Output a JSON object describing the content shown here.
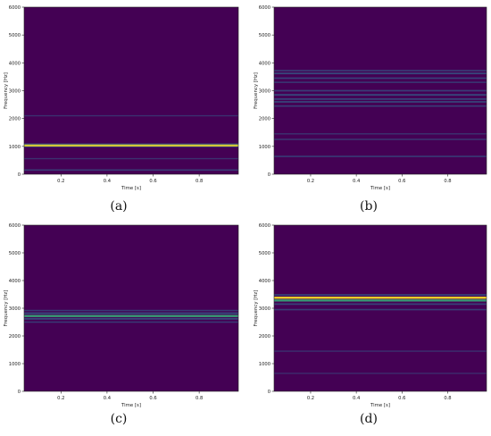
{
  "colors": {
    "background": "#440154",
    "line_mid": "#31688e",
    "line_bright": "#35b779",
    "line_peak": "#fde725"
  },
  "chart_data": [
    {
      "type": "heatmap",
      "panel": "(a)",
      "xlabel": "Time [s]",
      "ylabel": "Frequency [Hz]",
      "xlim": [
        0.04,
        0.97
      ],
      "ylim": [
        0,
        6000
      ],
      "xticks": [
        0.2,
        0.4,
        0.6,
        0.8
      ],
      "yticks": [
        0,
        1000,
        2000,
        3000,
        4000,
        5000,
        6000
      ],
      "bands": [
        {
          "freq": 150,
          "intensity": 0.35
        },
        {
          "freq": 560,
          "intensity": 0.2
        },
        {
          "freq": 1000,
          "intensity": 0.55
        },
        {
          "freq": 1040,
          "intensity": 0.95
        },
        {
          "freq": 1080,
          "intensity": 0.45
        },
        {
          "freq": 2100,
          "intensity": 0.2
        }
      ]
    },
    {
      "type": "heatmap",
      "panel": "(b)",
      "xlabel": "Time [s]",
      "ylabel": "Frequency [Hz]",
      "xlim": [
        0.04,
        0.97
      ],
      "ylim": [
        0,
        6000
      ],
      "xticks": [
        0.2,
        0.4,
        0.6,
        0.8
      ],
      "yticks": [
        0,
        1000,
        2000,
        3000,
        4000,
        5000,
        6000
      ],
      "bands": [
        {
          "freq": 640,
          "intensity": 0.35
        },
        {
          "freq": 1250,
          "intensity": 0.3
        },
        {
          "freq": 1450,
          "intensity": 0.25
        },
        {
          "freq": 2450,
          "intensity": 0.4
        },
        {
          "freq": 2600,
          "intensity": 0.5
        },
        {
          "freq": 2700,
          "intensity": 0.45
        },
        {
          "freq": 2850,
          "intensity": 0.55
        },
        {
          "freq": 3000,
          "intensity": 0.4
        },
        {
          "freq": 3300,
          "intensity": 0.35
        },
        {
          "freq": 3450,
          "intensity": 0.45
        },
        {
          "freq": 3620,
          "intensity": 0.55
        },
        {
          "freq": 3720,
          "intensity": 0.4
        }
      ]
    },
    {
      "type": "heatmap",
      "panel": "(c)",
      "xlabel": "Time [s]",
      "ylabel": "Frequency [Hz]",
      "xlim": [
        0.04,
        0.97
      ],
      "ylim": [
        0,
        6000
      ],
      "xticks": [
        0.2,
        0.4,
        0.6,
        0.8
      ],
      "yticks": [
        0,
        1000,
        2000,
        3000,
        4000,
        5000,
        6000
      ],
      "bands": [
        {
          "freq": 2500,
          "intensity": 0.35
        },
        {
          "freq": 2620,
          "intensity": 0.55
        },
        {
          "freq": 2720,
          "intensity": 0.85
        },
        {
          "freq": 2820,
          "intensity": 0.6
        },
        {
          "freq": 2920,
          "intensity": 0.35
        }
      ]
    },
    {
      "type": "heatmap",
      "panel": "(d)",
      "xlabel": "Time [s]",
      "ylabel": "Frequency [Hz]",
      "xlim": [
        0.04,
        0.97
      ],
      "ylim": [
        0,
        6000
      ],
      "xticks": [
        0.2,
        0.4,
        0.6,
        0.8
      ],
      "yticks": [
        0,
        1000,
        2000,
        3000,
        4000,
        5000,
        6000
      ],
      "bands": [
        {
          "freq": 650,
          "intensity": 0.2
        },
        {
          "freq": 1450,
          "intensity": 0.2
        },
        {
          "freq": 2950,
          "intensity": 0.35
        },
        {
          "freq": 3150,
          "intensity": 0.45
        },
        {
          "freq": 3280,
          "intensity": 0.8
        },
        {
          "freq": 3380,
          "intensity": 0.9
        },
        {
          "freq": 3480,
          "intensity": 0.5
        }
      ]
    }
  ]
}
